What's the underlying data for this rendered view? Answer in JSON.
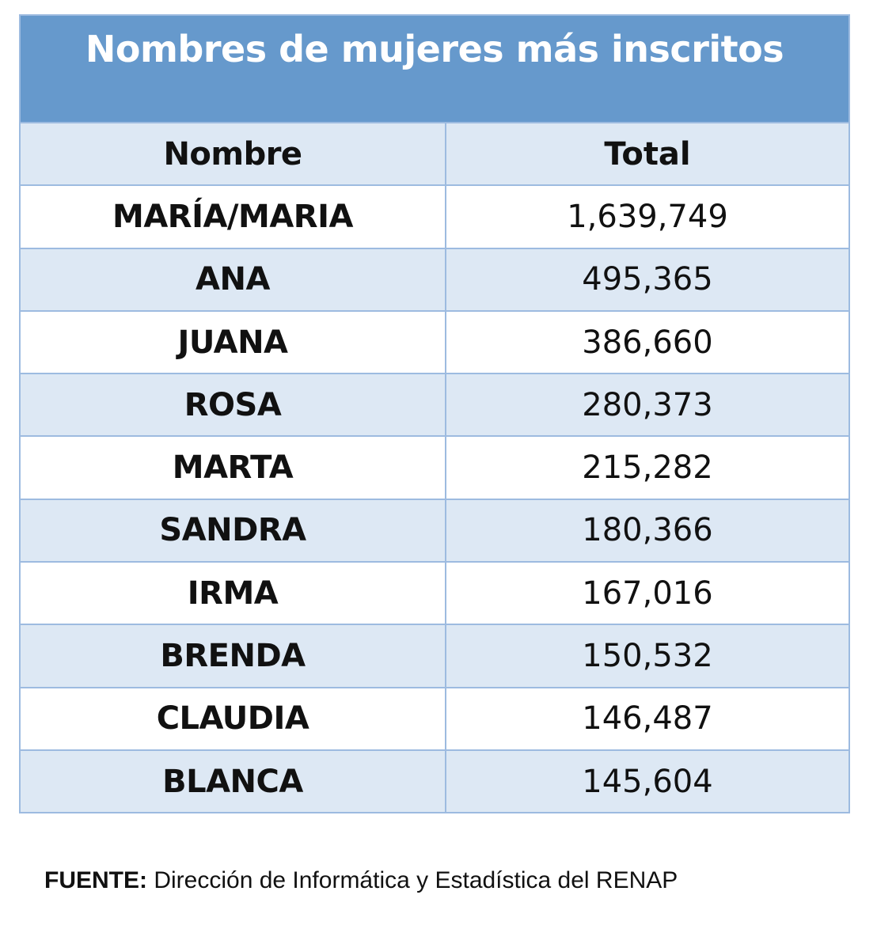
{
  "title": "Nombres de mujeres más inscritos",
  "columns": [
    "Nombre",
    "Total"
  ],
  "rows": [
    {
      "name": "MARÍA/MARIA",
      "total": "1,639,749"
    },
    {
      "name": "ANA",
      "total": "495,365"
    },
    {
      "name": "JUANA",
      "total": "386,660"
    },
    {
      "name": "ROSA",
      "total": "280,373"
    },
    {
      "name": "MARTA",
      "total": "215,282"
    },
    {
      "name": "SANDRA",
      "total": "180,366"
    },
    {
      "name": "IRMA",
      "total": "167,016"
    },
    {
      "name": "BRENDA",
      "total": "150,532"
    },
    {
      "name": "CLAUDIA",
      "total": "146,487"
    },
    {
      "name": "BLANCA",
      "total": "145,604"
    }
  ],
  "source": {
    "label": "FUENTE:",
    "text": " Dirección de Informática y Estadística del RENAP"
  },
  "colors": {
    "title_bg": "#6699cc",
    "shaded_row": "#dde8f4",
    "border": "#9dbbe0"
  }
}
